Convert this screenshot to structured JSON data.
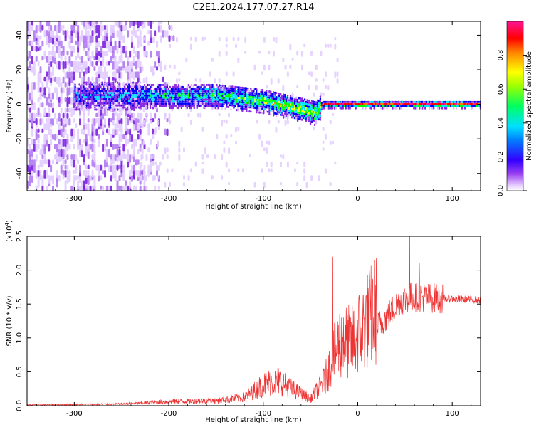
{
  "title": "C2E1.2024.177.07.27.R14",
  "chart_data": [
    {
      "type": "heatmap",
      "xlabel": "Height of straight line (km)",
      "ylabel": "Frequency (Hz)",
      "xlim": [
        -350,
        130
      ],
      "ylim": [
        -50,
        48
      ],
      "xticks": [
        -300,
        -200,
        -100,
        0,
        100
      ],
      "yticks": [
        -40,
        -20,
        0,
        20,
        40
      ],
      "colorbar": {
        "label": "Normalized spectral amplitude",
        "ticks": [
          "0.0",
          "0.2",
          "0.4",
          "0.6",
          "0.8"
        ],
        "range": [
          0,
          1
        ],
        "colors": [
          "#ffffff",
          "#d9b8ff",
          "#8a2be2",
          "#0000ff",
          "#00e5ff",
          "#00ff00",
          "#ffff00",
          "#ff7f00",
          "#ff0000",
          "#ff1493"
        ]
      },
      "ridge": [
        {
          "x": -230,
          "y": 5
        },
        {
          "x": -150,
          "y": 5
        },
        {
          "x": -100,
          "y": 2
        },
        {
          "x": -60,
          "y": -3
        },
        {
          "x": -45,
          "y": -5
        },
        {
          "x": -38,
          "y": 0
        },
        {
          "x": 0,
          "y": 0
        },
        {
          "x": 130,
          "y": 0
        }
      ]
    },
    {
      "type": "line",
      "xlabel": "Height of straight line (km)",
      "ylabel": "SNR (10 * v/v)",
      "yscale_label": "(x10",
      "yscale_exp": "4",
      "yscale_close": ")",
      "xlim": [
        -350,
        130
      ],
      "ylim": [
        0,
        2.5
      ],
      "xticks": [
        -300,
        -200,
        -100,
        0,
        100
      ],
      "yticks": [
        "0.0",
        "0.5",
        "1.0",
        "1.5",
        "2.0",
        "2.5"
      ],
      "color": "#ee3333",
      "envelope": [
        {
          "x": -350,
          "y": 0.01
        },
        {
          "x": -250,
          "y": 0.02
        },
        {
          "x": -200,
          "y": 0.05
        },
        {
          "x": -150,
          "y": 0.06
        },
        {
          "x": -120,
          "y": 0.1
        },
        {
          "x": -100,
          "y": 0.25
        },
        {
          "x": -85,
          "y": 0.3
        },
        {
          "x": -70,
          "y": 0.2
        },
        {
          "x": -50,
          "y": 0.08
        },
        {
          "x": -35,
          "y": 0.3
        },
        {
          "x": -20,
          "y": 0.75
        },
        {
          "x": -5,
          "y": 0.75
        },
        {
          "x": 0,
          "y": 0.85
        },
        {
          "x": 10,
          "y": 1.0
        },
        {
          "x": 20,
          "y": 1.15
        },
        {
          "x": 30,
          "y": 1.3
        },
        {
          "x": 45,
          "y": 1.55
        },
        {
          "x": 55,
          "y": 1.6
        },
        {
          "x": 70,
          "y": 1.6
        },
        {
          "x": 90,
          "y": 1.58
        },
        {
          "x": 130,
          "y": 1.56
        }
      ],
      "peaks": [
        {
          "x": -27,
          "y": 2.2
        },
        {
          "x": -15,
          "y": 1.3
        },
        {
          "x": 55,
          "y": 2.55
        },
        {
          "x": 65,
          "y": 2.1
        }
      ]
    }
  ]
}
